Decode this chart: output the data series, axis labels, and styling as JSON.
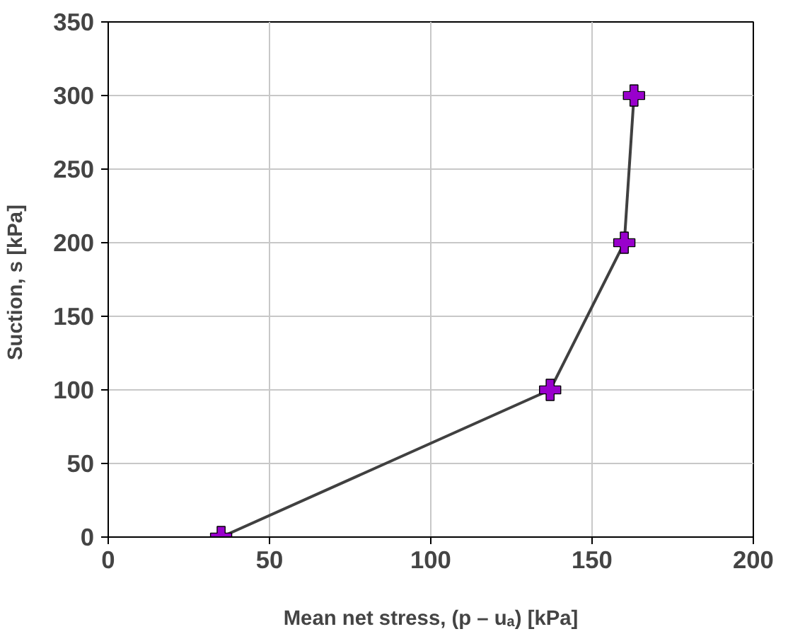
{
  "chart_data": {
    "type": "line",
    "xlabel": "Mean net stress, (p – uₐ) [kPa]",
    "ylabel": "Suction, s  [kPa]",
    "x": [
      35,
      137,
      160,
      163
    ],
    "series": [
      {
        "color": "#404040",
        "colors": [
          "#9900cc",
          "#9900cc",
          "#9900cc",
          "#9900cc"
        ],
        "values": [
          0,
          100,
          200,
          300
        ]
      }
    ],
    "marker": "cross",
    "xlim": [
      0,
      200
    ],
    "xticks": [
      0,
      50,
      100,
      150,
      200
    ],
    "ylim": [
      0,
      350
    ],
    "yticks": [
      0,
      50,
      100,
      150,
      200,
      250,
      300,
      350
    ],
    "grid": true
  }
}
